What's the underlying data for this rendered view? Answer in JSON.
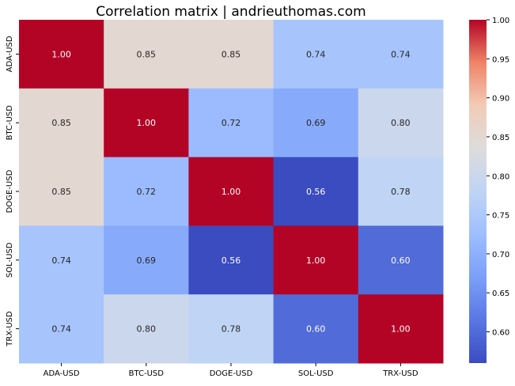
{
  "chart_data": {
    "type": "heatmap",
    "title": "Correlation matrix | andrieuthomas.com",
    "xlabel": "",
    "ylabel": "",
    "x_categories": [
      "ADA-USD",
      "BTC-USD",
      "DOGE-USD",
      "SOL-USD",
      "TRX-USD"
    ],
    "y_categories": [
      "ADA-USD",
      "BTC-USD",
      "DOGE-USD",
      "SOL-USD",
      "TRX-USD"
    ],
    "values": [
      [
        1.0,
        0.85,
        0.85,
        0.74,
        0.74
      ],
      [
        0.85,
        1.0,
        0.72,
        0.69,
        0.8
      ],
      [
        0.85,
        0.72,
        1.0,
        0.56,
        0.78
      ],
      [
        0.74,
        0.69,
        0.56,
        1.0,
        0.6
      ],
      [
        0.74,
        0.8,
        0.78,
        0.6,
        1.0
      ]
    ],
    "value_format": "0.00",
    "colormap": "coolwarm",
    "colorbar": {
      "min": 0.56,
      "max": 1.0,
      "ticks": [
        "0.60",
        "0.65",
        "0.70",
        "0.75",
        "0.80",
        "0.85",
        "0.90",
        "0.95",
        "1.00"
      ]
    }
  }
}
